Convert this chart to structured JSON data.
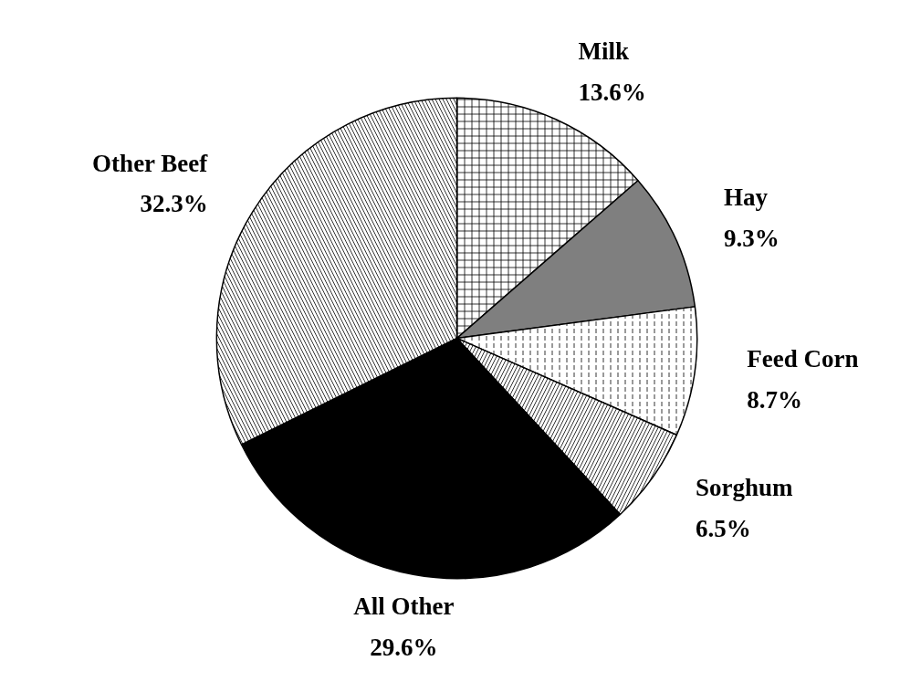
{
  "chart_data": {
    "type": "pie",
    "categories": [
      "Milk",
      "Hay",
      "Feed Corn",
      "Sorghum",
      "All Other",
      "Other Beef"
    ],
    "values": [
      13.6,
      9.3,
      8.7,
      6.5,
      29.6,
      32.3
    ],
    "value_labels": [
      "13.6%",
      "9.3%",
      "8.7%",
      "6.5%",
      "29.6%",
      "32.3%"
    ],
    "colors": [
      "#ffffff",
      "#7f7f7f",
      "#ffffff",
      "#ffffff",
      "#000000",
      "#ffffff"
    ]
  }
}
